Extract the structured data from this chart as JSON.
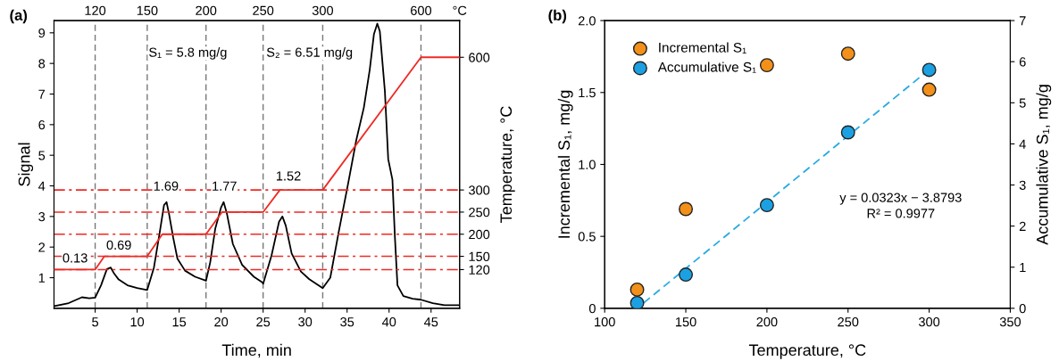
{
  "chart_data": [
    {
      "type": "line",
      "title": "(a)",
      "xlabel": "Time, min",
      "ylabel": "Signal",
      "y2label": "Temperature, °C",
      "x2label": "°C",
      "xlim": [
        0.1,
        48.4
      ],
      "xticks": [
        5,
        10,
        15,
        20,
        25,
        30,
        35,
        40,
        45
      ],
      "ylim": [
        0,
        9.4
      ],
      "yticks": [
        1,
        2,
        3,
        4,
        5,
        6,
        7,
        8,
        9
      ],
      "y2lim": [
        32.5,
        683
      ],
      "y2ticks": [
        120,
        150,
        200,
        250,
        300,
        600
      ],
      "grid": false,
      "legend": false,
      "series": [
        {
          "color": "#000000",
          "x": [
            0.14,
            1.85,
            3.43,
            4.3,
            5.0,
            5.7,
            6.4,
            6.86,
            7.27,
            7.8,
            8.85,
            10,
            11.2,
            12.0,
            12.7,
            13.2,
            13.5,
            13.8,
            14.3,
            14.8,
            15.7,
            16.9,
            18.2,
            18.7,
            19.3,
            20.0,
            20.3,
            20.7,
            21.4,
            22.5,
            23.9,
            24.9,
            25.0,
            26.0,
            26.9,
            27.3,
            27.7,
            28.4,
            29.5,
            30.5,
            32.1,
            33.0,
            34.0,
            35.1,
            36.1,
            37.0,
            37.7,
            38.2,
            38.6,
            38.9,
            39.5,
            39.9,
            40.4,
            40.7,
            41.0,
            41.7,
            42.8,
            43.8,
            45.2,
            46.6,
            48.3
          ],
          "values": [
            0.07,
            0.17,
            0.36,
            0.33,
            0.35,
            0.75,
            1.28,
            1.33,
            1.13,
            0.94,
            0.75,
            0.66,
            0.6,
            1.33,
            2.5,
            3.37,
            3.47,
            3.08,
            2.3,
            1.62,
            1.23,
            1.03,
            0.9,
            1.5,
            2.6,
            3.3,
            3.47,
            3.08,
            2.1,
            1.42,
            1.03,
            0.85,
            0.8,
            1.72,
            2.83,
            3.0,
            2.7,
            1.79,
            1.2,
            0.95,
            0.66,
            1.0,
            2.49,
            4.04,
            5.5,
            6.56,
            7.8,
            8.96,
            9.3,
            9.05,
            7.1,
            4.87,
            4.2,
            2.3,
            0.75,
            0.4,
            0.31,
            0.28,
            0.17,
            0.1,
            0.1
          ]
        },
        {
          "color": "#ee2a24",
          "axis": "y2",
          "x": [
            0.1,
            5.0,
            6.1,
            11.2,
            13.0,
            18.2,
            20.1,
            25.0,
            27.0,
            32.1,
            43.8,
            48.4
          ],
          "values": [
            120,
            120,
            150,
            150,
            200,
            200,
            250,
            250,
            300,
            300,
            600,
            600
          ]
        }
      ],
      "ref_lines": [
        {
          "axis": "x",
          "value": 5.0,
          "color": "#777777",
          "line_style": "dashed"
        },
        {
          "axis": "x",
          "value": 11.2,
          "color": "#777777",
          "line_style": "dashed"
        },
        {
          "axis": "x",
          "value": 18.2,
          "color": "#777777",
          "line_style": "dashed"
        },
        {
          "axis": "x",
          "value": 25.0,
          "color": "#777777",
          "line_style": "dashed"
        },
        {
          "axis": "x",
          "value": 32.1,
          "color": "#777777",
          "line_style": "dashed"
        },
        {
          "axis": "x",
          "value": 43.8,
          "color": "#777777",
          "line_style": "dashed"
        },
        {
          "axis": "y2",
          "value": 120,
          "color": "#ee2a24",
          "line_style": "dashdot"
        },
        {
          "axis": "y2",
          "value": 150,
          "color": "#ee2a24",
          "line_style": "dashdot"
        },
        {
          "axis": "y2",
          "value": 200,
          "color": "#ee2a24",
          "line_style": "dashdot"
        },
        {
          "axis": "y2",
          "value": 250,
          "color": "#ee2a24",
          "line_style": "dashdot"
        },
        {
          "axis": "y2",
          "value": 300,
          "color": "#ee2a24",
          "line_style": "dashdot"
        }
      ],
      "annotations": [
        "120",
        "150",
        "200",
        "250",
        "300",
        "600",
        "0.13",
        "0.69",
        "1.69",
        "1.77",
        "1.52",
        "S₁ = 5.8 mg/g",
        "S₂ = 6.51 mg/g"
      ]
    },
    {
      "type": "scatter",
      "title": "(b)",
      "xlabel": "Temperature, °C",
      "ylabel": "Incremental S₁, mg/g",
      "y2label": "Accumulative S₁, mg/g",
      "xlim": [
        100,
        350
      ],
      "xticks": [
        100,
        150,
        200,
        250,
        300,
        350
      ],
      "ylim": [
        0,
        2
      ],
      "yticks": [
        0,
        0.5,
        {
          "value": 1,
          "label": "1.0"
        },
        1.5,
        {
          "value": 2,
          "label": "2.0"
        }
      ],
      "y2lim": [
        0,
        7
      ],
      "y2ticks": [
        0,
        1,
        2,
        3,
        4,
        5,
        6,
        7
      ],
      "grid": false,
      "legend": "top left",
      "marker": "circle",
      "series": [
        {
          "name": "Incremental S₁",
          "color": "#f39019",
          "x": [
            120,
            150,
            200,
            250,
            300
          ],
          "values": [
            0.13,
            0.69,
            1.69,
            1.77,
            1.52
          ]
        },
        {
          "type": "line",
          "color": "#29abe2",
          "axis": "y2",
          "line_style": "dashed",
          "marker": "none",
          "x": [
            124,
            297
          ],
          "values": [
            0.13,
            5.71
          ]
        },
        {
          "name": "Accumulative S₁",
          "color": "#1ba1e2",
          "axis": "y2",
          "x": [
            120,
            150,
            200,
            250,
            300
          ],
          "values": [
            0.13,
            0.82,
            2.51,
            4.28,
            5.8
          ]
        }
      ],
      "annotations": [
        "y = 0.0323x − 3.8793",
        "R² = 0.9977"
      ]
    }
  ]
}
